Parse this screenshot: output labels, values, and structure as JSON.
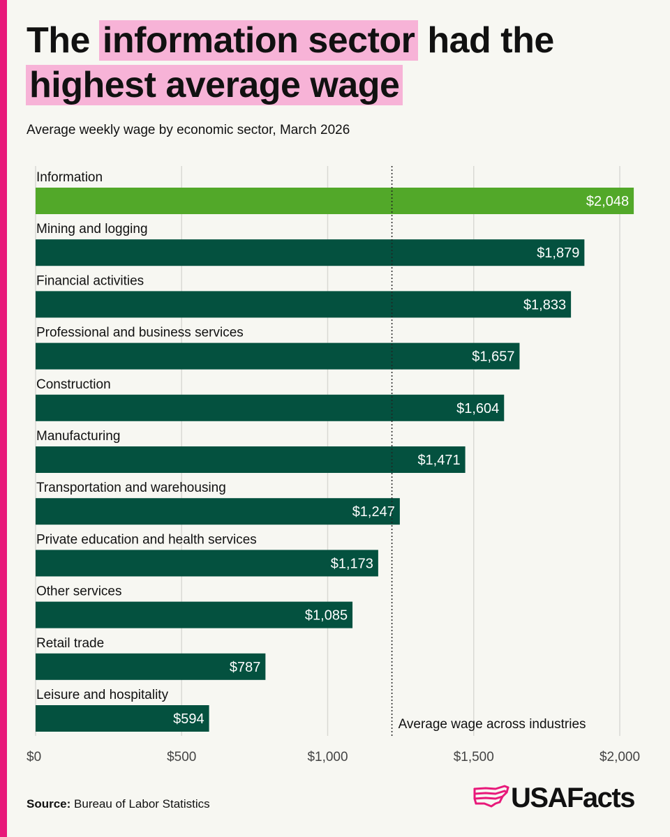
{
  "header": {
    "title_part1": "The ",
    "title_highlight1": "information sector",
    "title_part2": " had the",
    "title_highlight2": "highest average wage",
    "subtitle": "Average weekly wage by economic sector, March 2026"
  },
  "footer": {
    "source_label": "Source:",
    "source_text": " Bureau of Labor Statistics",
    "brand": "USAFacts",
    "brand_icon": "usa-map-icon"
  },
  "colors": {
    "accent": "#e8197a",
    "highlight": "#f7b3d7",
    "bar_highlight": "#52a829",
    "bar_default": "#04513f",
    "gridline": "#d9d9d4"
  },
  "chart_data": {
    "type": "bar",
    "orientation": "horizontal",
    "title": "",
    "xlabel": "",
    "ylabel": "",
    "xlim": [
      0,
      2000
    ],
    "grid": true,
    "ticks": [
      {
        "value": 0,
        "label": "$0"
      },
      {
        "value": 500,
        "label": "$500"
      },
      {
        "value": 1000,
        "label": "$1,000"
      },
      {
        "value": 1500,
        "label": "$1,500"
      },
      {
        "value": 2000,
        "label": "$2,000"
      }
    ],
    "categories": [
      "Information",
      "Mining and logging",
      "Financial activities",
      "Professional and business services",
      "Construction",
      "Manufacturing",
      "Transportation and warehousing",
      "Private education and health services",
      "Other services",
      "Retail trade",
      "Leisure and hospitality"
    ],
    "values": [
      2048,
      1879,
      1833,
      1657,
      1604,
      1471,
      1247,
      1173,
      1085,
      787,
      594
    ],
    "value_labels": [
      "$2,048",
      "$1,879",
      "$1,833",
      "$1,657",
      "$1,604",
      "$1,471",
      "$1,247",
      "$1,173",
      "$1,085",
      "$787",
      "$594"
    ],
    "highlighted_category": "Information",
    "reference_line": {
      "value": 1220,
      "label": "Average wage across industries"
    }
  }
}
